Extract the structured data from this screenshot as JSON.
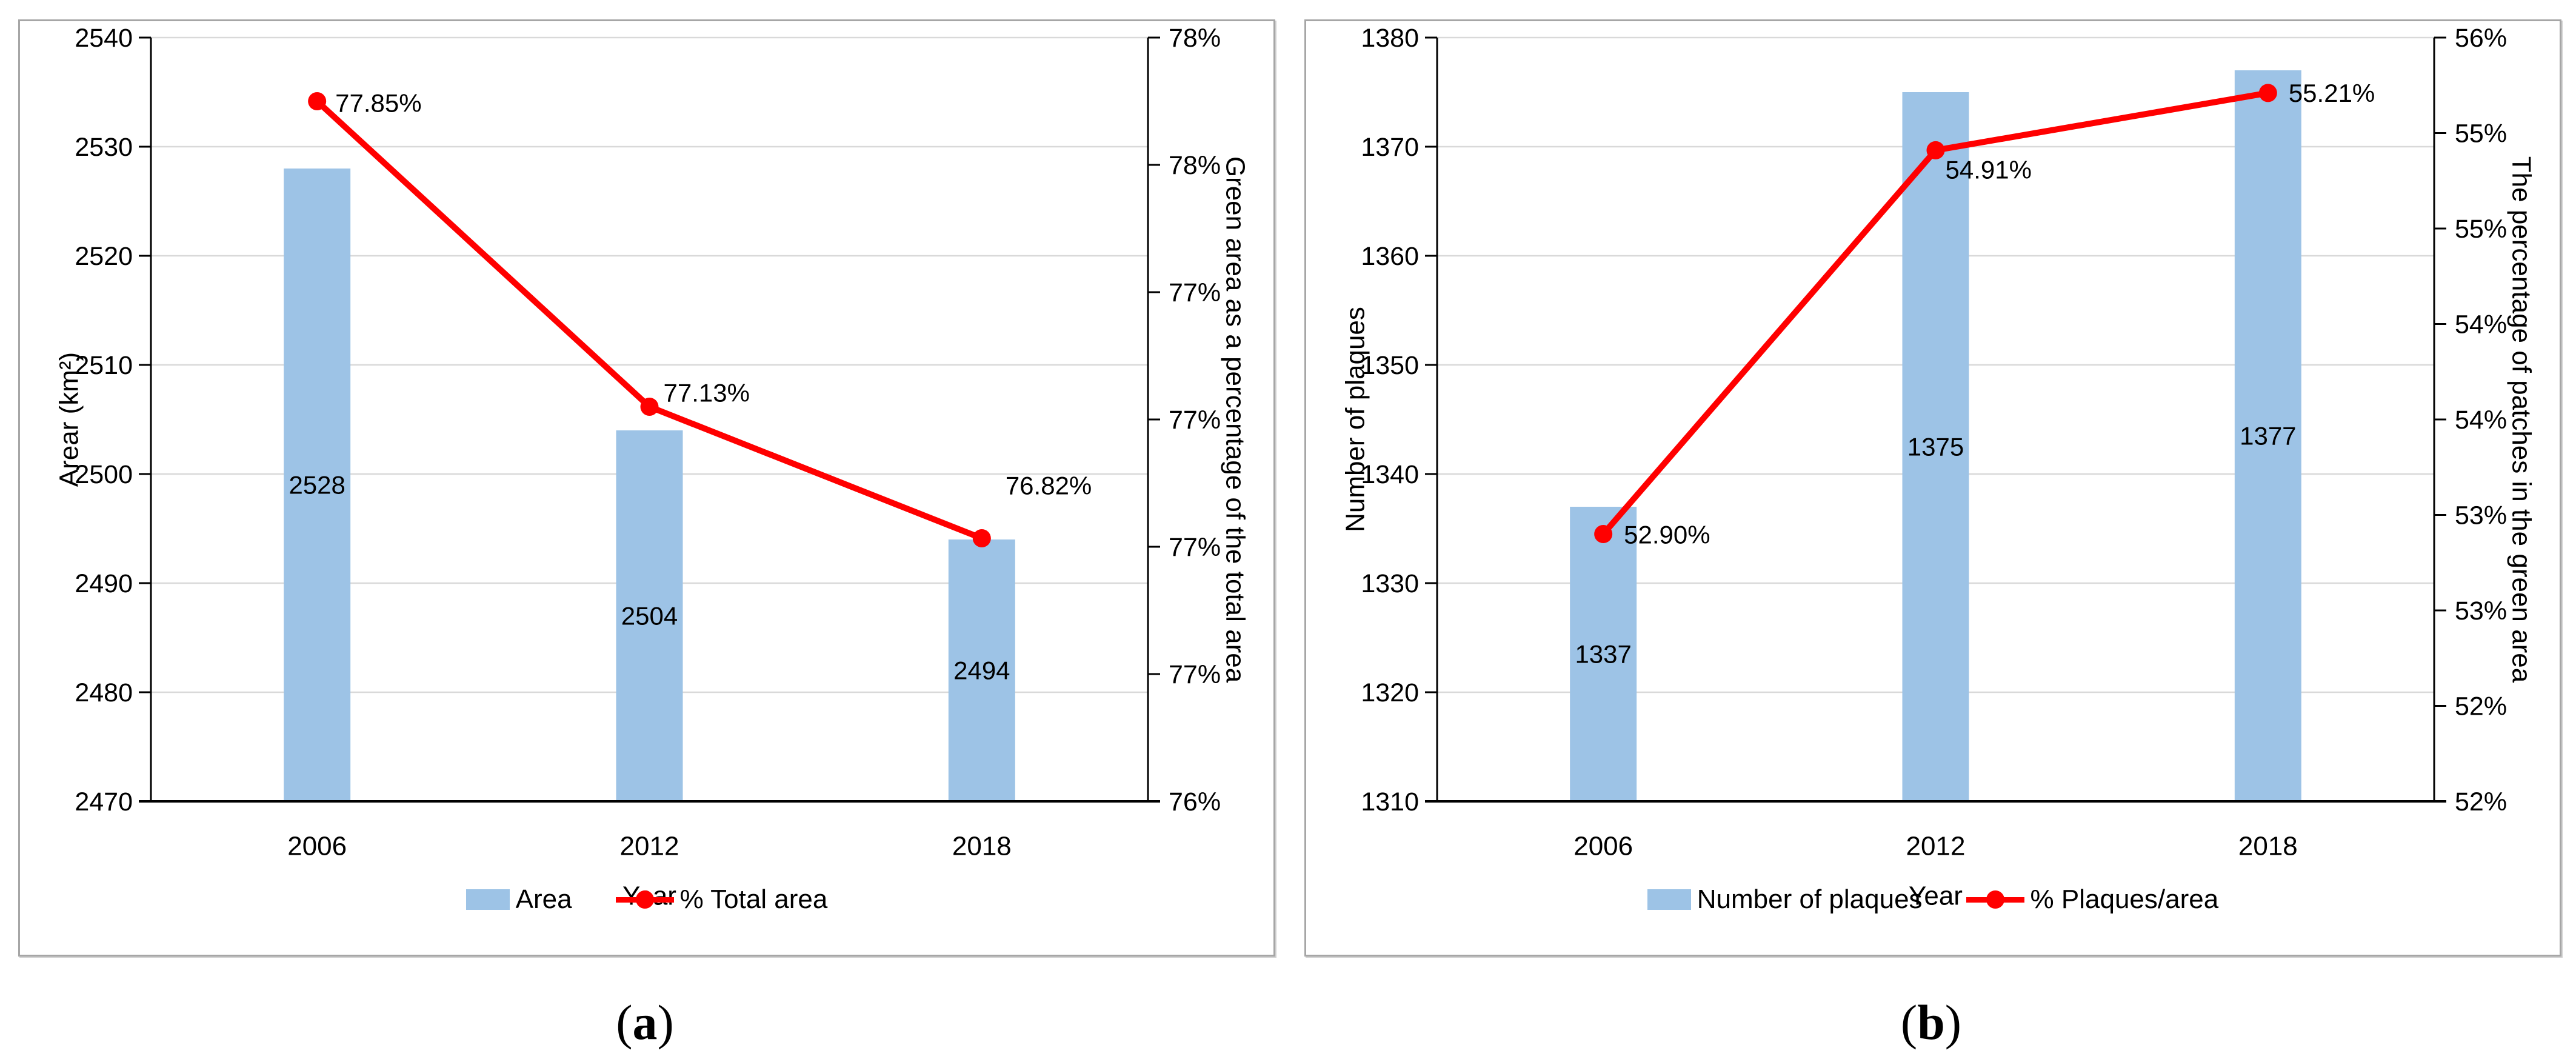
{
  "figure": {
    "background": "#ffffff",
    "panel_border_color": "#a6a6a6",
    "grid_color": "#d9d9d9",
    "axis_color": "#000000",
    "text_color": "#000000"
  },
  "captions": [
    {
      "open": "(",
      "letter": "a",
      "close": ")"
    },
    {
      "open": "(",
      "letter": "b",
      "close": ")"
    }
  ],
  "chart_data": [
    {
      "type": "bar+line",
      "categories": [
        "2006",
        "2012",
        "2018"
      ],
      "x_title": "Year",
      "bar_series": {
        "name": "Area",
        "values": [
          2528,
          2504,
          2494
        ],
        "labels": [
          "2528",
          "2504",
          "2494"
        ],
        "color": "#9dc3e6"
      },
      "line_series": {
        "name": "% Total area",
        "values": [
          77.85,
          77.13,
          76.82
        ],
        "labels": [
          "77.85%",
          "77.13%",
          "76.82%"
        ],
        "color": "#ff0000"
      },
      "left_axis": {
        "title": "Arear (km²)",
        "min": 2470,
        "max": 2540,
        "tick_labels_top_to_bottom": [
          "2540",
          "2530",
          "2520",
          "2510",
          "2500",
          "2490",
          "2480",
          "2470"
        ]
      },
      "right_axis": {
        "title": "Green area as a percentage of the total area",
        "min": 76.2,
        "max": 78.0,
        "tick_labels_top_to_bottom": [
          "78%",
          "78%",
          "77%",
          "77%",
          "77%",
          "77%",
          "76%"
        ]
      },
      "legend": {
        "bar_label": "Area",
        "line_label": "% Total area"
      },
      "legend_position": "bottom",
      "grid": "horizontal"
    },
    {
      "type": "bar+line",
      "categories": [
        "2006",
        "2012",
        "2018"
      ],
      "x_title": "Year",
      "bar_series": {
        "name": "Number of plaques",
        "values": [
          1337,
          1375,
          1377
        ],
        "labels": [
          "1337",
          "1375",
          "1377"
        ],
        "color": "#9dc3e6"
      },
      "line_series": {
        "name": "% Plaques/area",
        "values": [
          52.9,
          54.91,
          55.21
        ],
        "labels": [
          "52.90%",
          "54.91%",
          "55.21%"
        ],
        "color": "#ff0000"
      },
      "left_axis": {
        "title": "Number of plaques",
        "min": 1310,
        "max": 1380,
        "tick_labels_top_to_bottom": [
          "1380",
          "1370",
          "1360",
          "1350",
          "1340",
          "1330",
          "1320",
          "1310"
        ]
      },
      "right_axis": {
        "title": "The percentage of patches in the green area",
        "min": 51.5,
        "max": 55.5,
        "tick_labels_top_to_bottom": [
          "56%",
          "55%",
          "55%",
          "54%",
          "54%",
          "53%",
          "53%",
          "52%",
          "52%"
        ]
      },
      "legend": {
        "bar_label": "Number of plaques",
        "line_label": "% Plaques/area"
      },
      "legend_position": "bottom",
      "grid": "horizontal"
    }
  ]
}
